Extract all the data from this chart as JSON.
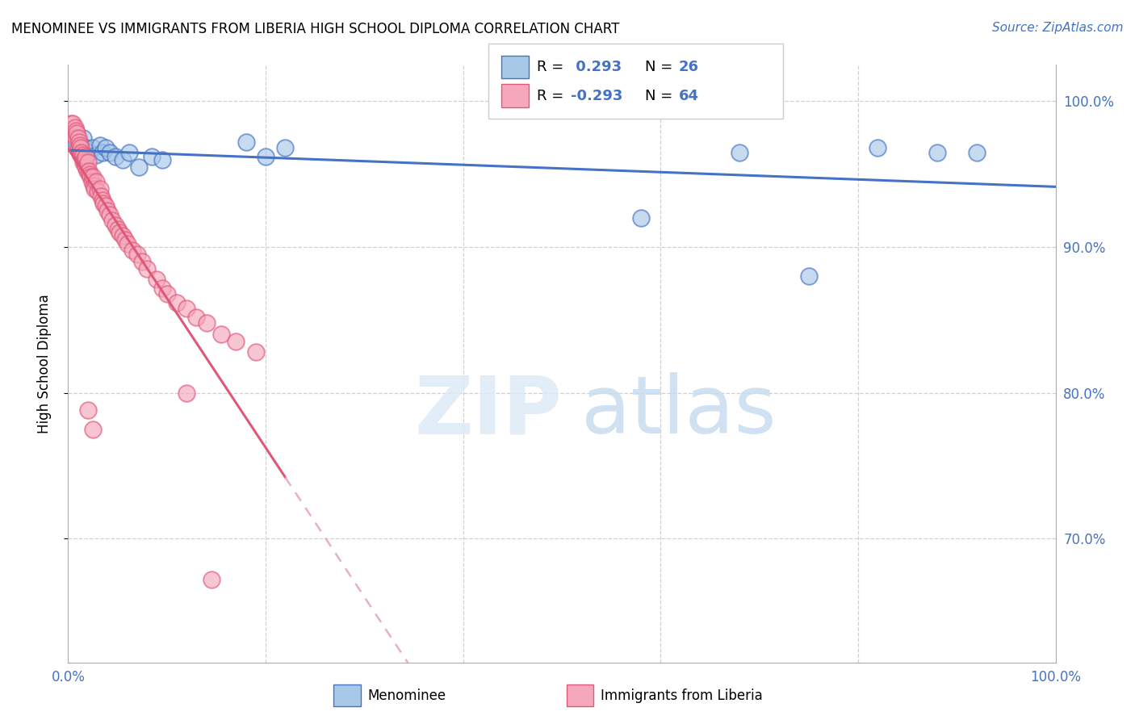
{
  "title": "MENOMINEE VS IMMIGRANTS FROM LIBERIA HIGH SCHOOL DIPLOMA CORRELATION CHART",
  "source": "Source: ZipAtlas.com",
  "ylabel": "High School Diploma",
  "xlim": [
    0.0,
    1.0
  ],
  "ylim": [
    0.615,
    1.025
  ],
  "color_blue": "#a8c8e8",
  "color_pink": "#f5a8bc",
  "line_blue": "#4472c4",
  "line_pink": "#e05878",
  "line_dashed_color": "#e8b0c0",
  "grid_color": "#d0d0d0",
  "menominee_x": [
    0.008,
    0.012,
    0.015,
    0.018,
    0.022,
    0.025,
    0.028,
    0.032,
    0.035,
    0.038,
    0.042,
    0.048,
    0.055,
    0.062,
    0.072,
    0.085,
    0.095,
    0.18,
    0.2,
    0.22,
    0.58,
    0.68,
    0.75,
    0.82,
    0.88,
    0.92
  ],
  "menominee_y": [
    0.972,
    0.97,
    0.975,
    0.968,
    0.965,
    0.968,
    0.963,
    0.97,
    0.965,
    0.968,
    0.965,
    0.962,
    0.96,
    0.965,
    0.955,
    0.962,
    0.96,
    0.972,
    0.962,
    0.968,
    0.92,
    0.965,
    0.88,
    0.968,
    0.965,
    0.965
  ],
  "liberia_x": [
    0.003,
    0.005,
    0.005,
    0.007,
    0.008,
    0.008,
    0.009,
    0.01,
    0.01,
    0.011,
    0.012,
    0.012,
    0.013,
    0.013,
    0.014,
    0.015,
    0.015,
    0.016,
    0.017,
    0.018,
    0.018,
    0.019,
    0.02,
    0.021,
    0.022,
    0.023,
    0.024,
    0.025,
    0.026,
    0.027,
    0.028,
    0.03,
    0.032,
    0.033,
    0.035,
    0.036,
    0.038,
    0.04,
    0.042,
    0.045,
    0.048,
    0.05,
    0.052,
    0.055,
    0.058,
    0.06,
    0.065,
    0.07,
    0.075,
    0.08,
    0.09,
    0.095,
    0.1,
    0.11,
    0.12,
    0.13,
    0.14,
    0.155,
    0.17,
    0.19,
    0.02,
    0.025,
    0.12,
    0.145
  ],
  "liberia_y": [
    0.985,
    0.985,
    0.978,
    0.982,
    0.98,
    0.975,
    0.978,
    0.975,
    0.968,
    0.972,
    0.97,
    0.965,
    0.968,
    0.963,
    0.965,
    0.963,
    0.958,
    0.96,
    0.958,
    0.955,
    0.962,
    0.952,
    0.958,
    0.952,
    0.95,
    0.948,
    0.945,
    0.948,
    0.942,
    0.94,
    0.945,
    0.938,
    0.94,
    0.935,
    0.932,
    0.93,
    0.928,
    0.925,
    0.922,
    0.918,
    0.915,
    0.912,
    0.91,
    0.908,
    0.905,
    0.902,
    0.898,
    0.895,
    0.89,
    0.885,
    0.878,
    0.872,
    0.868,
    0.862,
    0.858,
    0.852,
    0.848,
    0.84,
    0.835,
    0.828,
    0.788,
    0.775,
    0.8,
    0.672
  ]
}
